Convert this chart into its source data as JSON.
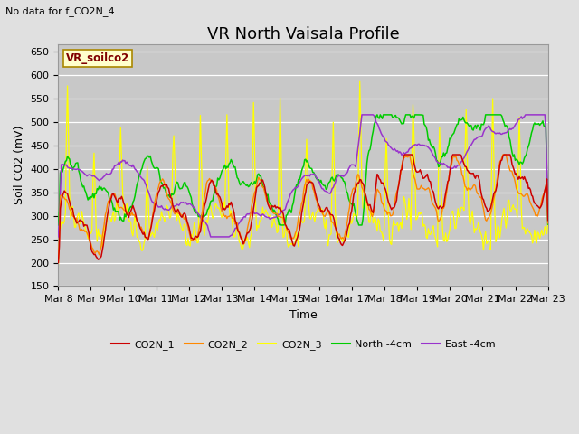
{
  "title": "VR North Vaisala Profile",
  "subtitle": "No data for f_CO2N_4",
  "ylabel": "Soil CO2 (mV)",
  "xlabel": "Time",
  "box_label": "VR_soilco2",
  "ylim": [
    150,
    665
  ],
  "yticks": [
    150,
    200,
    250,
    300,
    350,
    400,
    450,
    500,
    550,
    600,
    650
  ],
  "n_points": 480,
  "series_colors": {
    "CO2N_1": "#cc0000",
    "CO2N_2": "#ff8800",
    "CO2N_3": "#ffff00",
    "North_4cm": "#00cc00",
    "East_4cm": "#9933cc"
  },
  "background_color": "#e0e0e0",
  "plot_bg_color": "#c8c8c8",
  "grid_color": "#ffffff",
  "title_fontsize": 13,
  "label_fontsize": 9,
  "tick_fontsize": 8
}
